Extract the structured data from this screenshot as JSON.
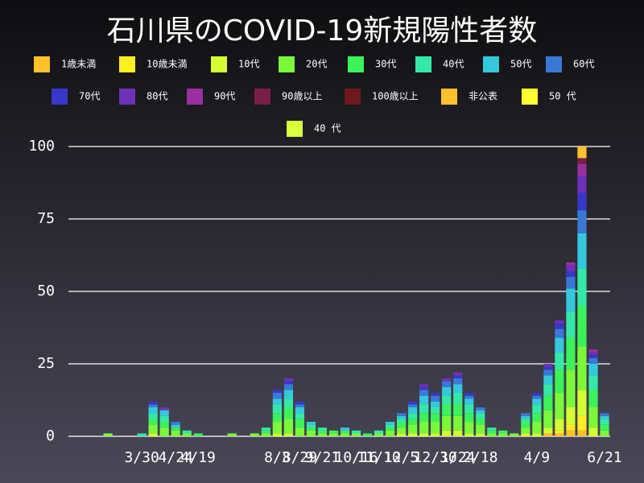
{
  "chart_data": {
    "type": "bar",
    "stacked": true,
    "title": "石川県のCOVID-19新規陽性者数",
    "categories": [
      null,
      null,
      null,
      null,
      null,
      null,
      "3/30",
      null,
      null,
      "4/24",
      null,
      "4/19",
      null,
      null,
      null,
      null,
      null,
      null,
      "8/3",
      null,
      "8/29",
      null,
      "9/21",
      null,
      null,
      "10/16",
      null,
      "11/10",
      null,
      "12/5",
      null,
      null,
      "12/30",
      null,
      "1/24",
      null,
      "2/18",
      null,
      null,
      null,
      null,
      "4/9",
      null,
      null,
      null,
      null,
      null,
      "6/21"
    ],
    "ylim": [
      0,
      105
    ],
    "yticks": [
      0,
      25,
      50,
      75,
      100
    ],
    "grid": true,
    "series": [
      {
        "name": "1歳未満",
        "color": "#ffc02a",
        "values": [
          0,
          0,
          0,
          0,
          0,
          0,
          0,
          0,
          0,
          0,
          0,
          0,
          0,
          0,
          0,
          0,
          0,
          0,
          0,
          0,
          0,
          0,
          0,
          0,
          0,
          0,
          0,
          0,
          0,
          0,
          0,
          0,
          0,
          0,
          0,
          0,
          0,
          0,
          0,
          0,
          0,
          0,
          1,
          1,
          2,
          2,
          0,
          0
        ]
      },
      {
        "name": "10歳未満",
        "color": "#ffee22",
        "values": [
          0,
          0,
          0,
          0,
          0,
          0,
          0,
          0,
          0,
          0,
          0,
          0,
          0,
          0,
          0,
          0,
          0,
          0,
          0,
          0,
          0,
          0,
          0,
          0,
          0,
          0,
          0,
          0,
          0,
          0,
          0,
          0,
          0,
          0,
          0,
          0,
          0,
          0,
          0,
          0,
          0,
          0,
          0,
          1,
          2,
          5,
          0,
          0
        ]
      },
      {
        "name": "10代",
        "color": "#d4ff33",
        "values": [
          0,
          0,
          0,
          0,
          0,
          0,
          0,
          1,
          0,
          0,
          0,
          0,
          0,
          0,
          0,
          0,
          0,
          0,
          1,
          1,
          0,
          0,
          0,
          0,
          0,
          0,
          0,
          0,
          0,
          1,
          1,
          1,
          1,
          2,
          2,
          1,
          1,
          0,
          0,
          0,
          1,
          1,
          2,
          4,
          6,
          9,
          3,
          0
        ]
      },
      {
        "name": "20代",
        "color": "#7cf83a",
        "values": [
          0,
          0,
          0,
          1,
          0,
          0,
          0,
          3,
          3,
          2,
          1,
          0,
          0,
          0,
          1,
          0,
          1,
          1,
          4,
          5,
          3,
          2,
          1,
          1,
          1,
          1,
          0,
          1,
          2,
          2,
          3,
          4,
          4,
          5,
          5,
          4,
          3,
          1,
          1,
          1,
          2,
          4,
          6,
          9,
          13,
          15,
          7,
          2
        ]
      },
      {
        "name": "30代",
        "color": "#3cf25a",
        "values": [
          0,
          0,
          0,
          0,
          0,
          0,
          0,
          2,
          2,
          1,
          0,
          1,
          0,
          0,
          0,
          0,
          0,
          1,
          3,
          4,
          3,
          1,
          1,
          1,
          1,
          0,
          1,
          0,
          1,
          2,
          2,
          3,
          3,
          4,
          4,
          3,
          2,
          1,
          1,
          0,
          2,
          3,
          5,
          8,
          11,
          14,
          6,
          2
        ]
      },
      {
        "name": "40代",
        "color": "#36e8a8",
        "values": [
          0,
          0,
          0,
          0,
          0,
          0,
          1,
          2,
          2,
          0,
          1,
          0,
          0,
          0,
          0,
          0,
          0,
          1,
          3,
          3,
          2,
          1,
          1,
          0,
          0,
          1,
          0,
          1,
          1,
          1,
          2,
          3,
          2,
          3,
          4,
          3,
          2,
          1,
          0,
          0,
          1,
          3,
          4,
          6,
          9,
          13,
          5,
          2
        ]
      },
      {
        "name": "50代",
        "color": "#35c8dc",
        "values": [
          0,
          0,
          0,
          0,
          0,
          0,
          0,
          2,
          2,
          1,
          0,
          0,
          0,
          0,
          0,
          0,
          0,
          0,
          2,
          3,
          2,
          1,
          0,
          0,
          1,
          0,
          0,
          0,
          1,
          1,
          2,
          3,
          2,
          3,
          3,
          2,
          1,
          0,
          0,
          0,
          1,
          2,
          3,
          5,
          8,
          12,
          4,
          1
        ]
      },
      {
        "name": "60代",
        "color": "#3a78d8",
        "values": [
          0,
          0,
          0,
          0,
          0,
          0,
          0,
          1,
          0,
          1,
          0,
          0,
          0,
          0,
          0,
          0,
          0,
          0,
          2,
          2,
          1,
          0,
          0,
          0,
          0,
          0,
          0,
          0,
          0,
          1,
          1,
          2,
          2,
          2,
          2,
          1,
          1,
          0,
          0,
          0,
          1,
          1,
          2,
          3,
          4,
          8,
          2,
          1
        ]
      },
      {
        "name": "70代",
        "color": "#3838c8",
        "values": [
          0,
          0,
          0,
          0,
          0,
          0,
          0,
          1,
          0,
          0,
          0,
          0,
          0,
          0,
          0,
          0,
          0,
          0,
          1,
          1,
          1,
          0,
          0,
          0,
          0,
          0,
          0,
          0,
          0,
          0,
          1,
          1,
          1,
          0,
          1,
          1,
          0,
          0,
          0,
          0,
          0,
          1,
          1,
          2,
          2,
          6,
          1,
          0
        ]
      },
      {
        "name": "80代",
        "color": "#7030b8",
        "values": [
          0,
          0,
          0,
          0,
          0,
          0,
          0,
          0,
          1,
          0,
          0,
          0,
          0,
          0,
          0,
          0,
          0,
          0,
          0,
          1,
          0,
          0,
          0,
          0,
          0,
          0,
          0,
          0,
          0,
          0,
          0,
          1,
          0,
          1,
          1,
          0,
          0,
          0,
          0,
          0,
          0,
          0,
          1,
          1,
          2,
          6,
          1,
          0
        ]
      },
      {
        "name": "90代",
        "color": "#9a30a0",
        "values": [
          0,
          0,
          0,
          0,
          0,
          0,
          0,
          0,
          0,
          0,
          0,
          0,
          0,
          0,
          0,
          0,
          0,
          0,
          0,
          0,
          0,
          0,
          0,
          0,
          0,
          0,
          0,
          0,
          0,
          0,
          0,
          0,
          0,
          0,
          0,
          0,
          0,
          0,
          0,
          0,
          0,
          0,
          0,
          0,
          1,
          4,
          1,
          0
        ]
      },
      {
        "name": "90歳以上",
        "color": "#781e48",
        "values": [
          0,
          0,
          0,
          0,
          0,
          0,
          0,
          0,
          0,
          0,
          0,
          0,
          0,
          0,
          0,
          0,
          0,
          0,
          0,
          0,
          0,
          0,
          0,
          0,
          0,
          0,
          0,
          0,
          0,
          0,
          0,
          0,
          0,
          0,
          0,
          0,
          0,
          0,
          0,
          0,
          0,
          0,
          0,
          0,
          0,
          2,
          0,
          0
        ]
      },
      {
        "name": "100歳以上",
        "color": "#6a1a1a",
        "values": [
          0,
          0,
          0,
          0,
          0,
          0,
          0,
          0,
          0,
          0,
          0,
          0,
          0,
          0,
          0,
          0,
          0,
          0,
          0,
          0,
          0,
          0,
          0,
          0,
          0,
          0,
          0,
          0,
          0,
          0,
          0,
          0,
          0,
          0,
          0,
          0,
          0,
          0,
          0,
          0,
          0,
          0,
          0,
          0,
          0,
          0,
          0,
          0
        ]
      },
      {
        "name": "非公表",
        "color": "#ffc030",
        "values": [
          0,
          0,
          0,
          0,
          0,
          0,
          0,
          0,
          0,
          0,
          0,
          0,
          0,
          0,
          0,
          0,
          0,
          0,
          0,
          0,
          0,
          0,
          0,
          0,
          0,
          0,
          0,
          0,
          0,
          0,
          0,
          0,
          0,
          0,
          0,
          0,
          0,
          0,
          0,
          0,
          0,
          0,
          0,
          0,
          0,
          4,
          0,
          0
        ]
      },
      {
        "name": "50 代",
        "color": "#ffff30",
        "values": [
          0,
          0,
          0,
          0,
          0,
          0,
          0,
          0,
          0,
          0,
          0,
          0,
          0,
          0,
          0,
          0,
          0,
          0,
          0,
          0,
          0,
          0,
          0,
          0,
          0,
          0,
          0,
          0,
          0,
          0,
          0,
          0,
          0,
          0,
          0,
          0,
          0,
          0,
          0,
          0,
          0,
          0,
          0,
          0,
          0,
          0,
          0,
          0
        ]
      },
      {
        "name": "40 代",
        "color": "#d8ff3a",
        "values": [
          0,
          0,
          0,
          0,
          0,
          0,
          0,
          0,
          0,
          0,
          0,
          0,
          0,
          0,
          0,
          0,
          0,
          0,
          0,
          0,
          0,
          0,
          0,
          0,
          0,
          0,
          0,
          0,
          0,
          0,
          0,
          0,
          0,
          0,
          0,
          0,
          0,
          0,
          0,
          0,
          0,
          0,
          0,
          0,
          0,
          0,
          0,
          0
        ]
      }
    ]
  }
}
